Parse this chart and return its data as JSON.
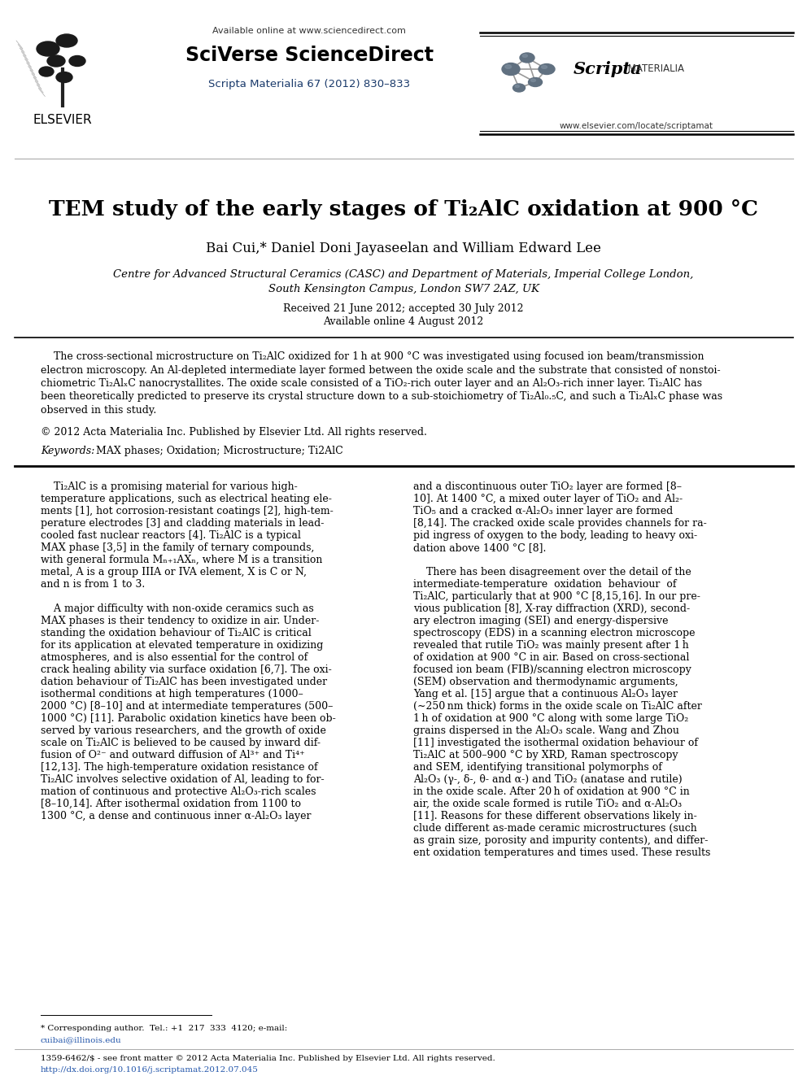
{
  "bg_color": "#ffffff",
  "available_online": "Available online at www.sciencedirect.com",
  "sciverse": "SciVerse ScienceDirect",
  "journal_link": "Scripta Materialia 67 (2012) 830–833",
  "elsevier_label": "ELSEVIER",
  "website": "www.elsevier.com/locate/scriptamat",
  "title": "TEM study of the early stages of Ti₂AlC oxidation at 900 °C",
  "authors": "Bai Cui,* Daniel Doni Jayaseelan and William Edward Lee",
  "affiliation1": "Centre for Advanced Structural Ceramics (CASC) and Department of Materials, Imperial College London,",
  "affiliation2": "South Kensington Campus, London SW7 2AZ, UK",
  "received": "Received 21 June 2012; accepted 30 July 2012",
  "available_date": "Available online 4 August 2012",
  "copyright": "© 2012 Acta Materialia Inc. Published by Elsevier Ltd. All rights reserved.",
  "keywords_label": "Keywords:",
  "keywords_text": "MAX phases; Oxidation; Microstructure; Ti2AlC",
  "footnote_label": "* Corresponding author.  Tel.: +1  217  333  4120; e-mail:",
  "footnote_email": "cuibai@illinois.edu",
  "footer1": "1359-6462/$ - see front matter © 2012 Acta Materialia Inc. Published by Elsevier Ltd. All rights reserved.",
  "footer2": "http://dx.doi.org/10.1016/j.scriptamat.2012.07.045",
  "ref_color": "#1a3a6b",
  "link_color": "#2255aa",
  "text_color": "#000000",
  "gray_color": "#555555"
}
